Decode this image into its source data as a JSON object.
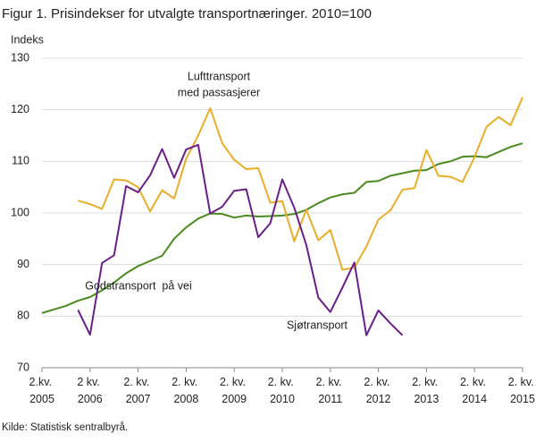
{
  "chart_data": {
    "type": "line",
    "title": "Figur 1. Prisindekser for utvalgte transportnæringer. 2010=100",
    "y_label": "Indeks",
    "source": "Kilde: Statistisk sentralbyrå.",
    "annotations": [
      "Lufttransport",
      "med passasjerer",
      "Godstransport  på vei",
      "Sjøtransport"
    ],
    "categories": [
      "2.kv. 2005",
      null,
      null,
      null,
      "2 kv. 2006",
      null,
      null,
      null,
      "2. kv. 2007",
      null,
      null,
      null,
      "2. kv. 2008",
      null,
      null,
      null,
      "2. kv. 2009",
      null,
      null,
      null,
      "2. kv. 2010",
      null,
      null,
      null,
      "2. kv. 2011",
      null,
      null,
      null,
      "2. kv. 2012",
      null,
      null,
      null,
      "2. kv. 2013",
      null,
      null,
      null,
      "2. kv. 2014",
      null,
      null,
      null,
      "2. kv. 2015"
    ],
    "ylim": [
      70,
      130
    ],
    "yticks": [
      70,
      80,
      90,
      100,
      110,
      120,
      130
    ],
    "grid": true,
    "series": [
      {
        "name": "Godstransport på vei",
        "color": "#4a8a1f",
        "values": [
          80.6,
          81.3,
          82.0,
          83.0,
          83.7,
          85.0,
          86.5,
          88.3,
          89.7,
          90.7,
          91.7,
          95.0,
          97.2,
          98.9,
          99.9,
          99.8,
          99.1,
          99.5,
          99.3,
          99.4,
          99.5,
          99.8,
          100.6,
          101.9,
          103.0,
          103.6,
          103.9,
          106.0,
          106.2,
          107.2,
          107.7,
          108.2,
          108.3,
          109.5,
          110.0,
          110.9,
          111.0,
          110.8,
          111.8,
          112.8,
          113.5
        ]
      },
      {
        "name": "Lufttransport med passasjerer",
        "color": "#e8ae2a",
        "values": [
          null,
          null,
          null,
          102.4,
          101.7,
          100.8,
          106.5,
          106.3,
          105.0,
          100.3,
          104.4,
          102.8,
          110.5,
          115.0,
          120.3,
          113.5,
          110.3,
          108.5,
          108.7,
          102.0,
          102.3,
          94.5,
          100.6,
          94.7,
          96.7,
          89.0,
          89.4,
          93.5,
          98.7,
          100.5,
          104.5,
          104.8,
          112.2,
          107.2,
          107.0,
          106.0,
          110.8,
          116.7,
          118.6,
          117.0,
          122.4
        ]
      },
      {
        "name": "Sjøtransport",
        "color": "#6a1f88",
        "values": [
          null,
          null,
          null,
          81.2,
          76.4,
          90.3,
          91.8,
          105.2,
          104.0,
          107.3,
          112.4,
          106.8,
          112.3,
          113.2,
          99.9,
          101.2,
          104.3,
          104.6,
          95.3,
          98.0,
          106.5,
          101.0,
          93.8,
          83.6,
          80.8,
          85.5,
          90.4,
          76.3,
          81.1,
          78.6,
          76.3,
          null,
          null,
          null,
          null,
          null,
          null,
          null,
          null,
          null,
          null
        ]
      }
    ]
  }
}
